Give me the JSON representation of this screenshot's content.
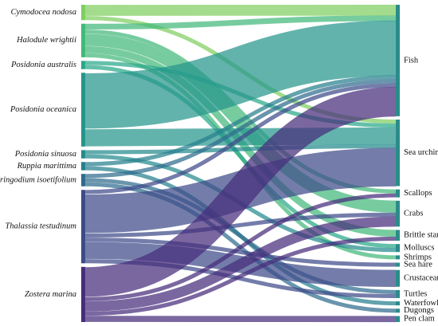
{
  "chart_data": {
    "type": "sankey",
    "sources": [
      {
        "name": "Cymodocea nodosa",
        "color": "#7fcf5f"
      },
      {
        "name": "Halodule wrightii",
        "color": "#43b97a"
      },
      {
        "name": "Posidonia australis",
        "color": "#2aa889"
      },
      {
        "name": "Posidonia oceanica",
        "color": "#25958c"
      },
      {
        "name": "Posidonia sinuosa",
        "color": "#248a8d"
      },
      {
        "name": "Ruppia marittima",
        "color": "#27808e"
      },
      {
        "name": "Syringodium isoetifolium",
        "color": "#2f6c8e"
      },
      {
        "name": "Thalassia testudinum",
        "color": "#3e4b89"
      },
      {
        "name": "Zostera marina",
        "color": "#472d7b"
      }
    ],
    "targets": [
      {
        "name": "Fish"
      },
      {
        "name": "Sea urchin"
      },
      {
        "name": "Scallops"
      },
      {
        "name": "Crabs"
      },
      {
        "name": "Brittle star"
      },
      {
        "name": "Molluscs"
      },
      {
        "name": "Shrimps"
      },
      {
        "name": "Sea hare"
      },
      {
        "name": "Crustaceans"
      },
      {
        "name": "Turtles"
      },
      {
        "name": "Waterfowl"
      },
      {
        "name": "Dugongs"
      },
      {
        "name": "Pen clam"
      }
    ],
    "links": [
      {
        "source": "Cymodocea nodosa",
        "target": "Fish",
        "value": 2.7
      },
      {
        "source": "Cymodocea nodosa",
        "target": "Sea urchin",
        "value": 1.0
      },
      {
        "source": "Halodule wrightii",
        "target": "Fish",
        "value": 1.4
      },
      {
        "source": "Halodule wrightii",
        "target": "Scallops",
        "value": 1.0
      },
      {
        "source": "Halodule wrightii",
        "target": "Crabs",
        "value": 3.0
      },
      {
        "source": "Halodule wrightii",
        "target": "Brittle star",
        "value": 1.7
      },
      {
        "source": "Halodule wrightii",
        "target": "Shrimps",
        "value": 1.0
      },
      {
        "source": "Posidonia australis",
        "target": "Sea urchin",
        "value": 1.0
      },
      {
        "source": "Posidonia australis",
        "target": "Molluscs",
        "value": 1.0
      },
      {
        "source": "Posidonia oceanica",
        "target": "Fish",
        "value": 13.6
      },
      {
        "source": "Posidonia oceanica",
        "target": "Sea urchin",
        "value": 4.2
      },
      {
        "source": "Posidonia sinuosa",
        "target": "Sea urchin",
        "value": 1.0
      },
      {
        "source": "Posidonia sinuosa",
        "target": "Molluscs",
        "value": 1.0
      },
      {
        "source": "Ruppia marittima",
        "target": "Fish",
        "value": 1.0
      },
      {
        "source": "Ruppia marittima",
        "target": "Waterfowl",
        "value": 1.0
      },
      {
        "source": "Syringodium isoetifolium",
        "target": "Fish",
        "value": 1.0
      },
      {
        "source": "Syringodium isoetifolium",
        "target": "Turtles",
        "value": 1.0
      },
      {
        "source": "Syringodium isoetifolium",
        "target": "Dugongs",
        "value": 1.0
      },
      {
        "source": "Thalassia testudinum",
        "target": "Fish",
        "value": 1.0
      },
      {
        "source": "Thalassia testudinum",
        "target": "Sea urchin",
        "value": 9.5
      },
      {
        "source": "Thalassia testudinum",
        "target": "Crabs",
        "value": 1.0
      },
      {
        "source": "Thalassia testudinum",
        "target": "Sea hare",
        "value": 1.0
      },
      {
        "source": "Thalassia testudinum",
        "target": "Crustaceans",
        "value": 4.2
      },
      {
        "source": "Thalassia testudinum",
        "target": "Turtles",
        "value": 1.0
      },
      {
        "source": "Zostera marina",
        "target": "Fish",
        "value": 7.3
      },
      {
        "source": "Zostera marina",
        "target": "Scallops",
        "value": 1.0
      },
      {
        "source": "Zostera marina",
        "target": "Crabs",
        "value": 2.5
      },
      {
        "source": "Zostera marina",
        "target": "Brittle star",
        "value": 1.0
      },
      {
        "source": "Zostera marina",
        "target": "Pen clam",
        "value": 1.5
      }
    ]
  }
}
